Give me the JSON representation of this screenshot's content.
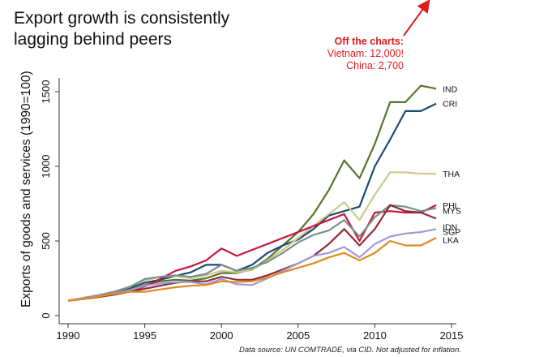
{
  "chart_data": {
    "type": "line",
    "title": "Export growth is consistently lagging behind peers",
    "title_lines": [
      "Export growth is consistently",
      "lagging behind peers"
    ],
    "xlabel": "",
    "ylabel": "Exports of goods and services (1990=100)",
    "xlim": [
      1989.5,
      2015.5
    ],
    "ylim": [
      0,
      1600
    ],
    "xticks": [
      1990,
      1995,
      2000,
      2005,
      2010,
      2015
    ],
    "yticks": [
      0,
      500,
      1000,
      1500
    ],
    "grid": false,
    "legend": "direct labels at line ends (right)",
    "x": [
      1990,
      1991,
      1992,
      1993,
      1994,
      1995,
      1996,
      1997,
      1998,
      1999,
      2000,
      2001,
      2002,
      2003,
      2004,
      2005,
      2006,
      2007,
      2008,
      2009,
      2010,
      2011,
      2012,
      2013,
      2014
    ],
    "series": [
      {
        "name": "IND",
        "color": "#56742c",
        "values": [
          100,
          118,
          130,
          150,
          175,
          205,
          230,
          240,
          235,
          250,
          285,
          285,
          310,
          380,
          470,
          560,
          680,
          840,
          1040,
          920,
          1150,
          1430,
          1430,
          1540,
          1520
        ]
      },
      {
        "name": "CRI",
        "color": "#1b4a73",
        "values": [
          100,
          118,
          135,
          155,
          185,
          220,
          240,
          265,
          290,
          340,
          340,
          300,
          340,
          420,
          470,
          510,
          580,
          670,
          700,
          730,
          1000,
          1180,
          1370,
          1370,
          1420
        ]
      },
      {
        "name": "THA",
        "color": "#cfc88c",
        "values": [
          100,
          120,
          140,
          160,
          195,
          235,
          260,
          265,
          250,
          270,
          300,
          290,
          305,
          370,
          440,
          520,
          600,
          680,
          760,
          640,
          810,
          960,
          960,
          950,
          950
        ]
      },
      {
        "name": "PHL",
        "color": "#c8173a",
        "values": [
          100,
          112,
          125,
          140,
          160,
          195,
          245,
          300,
          330,
          370,
          450,
          400,
          440,
          480,
          520,
          560,
          600,
          640,
          680,
          500,
          690,
          700,
          690,
          690,
          740
        ]
      },
      {
        "name": "MYS",
        "color": "#76928a",
        "values": [
          100,
          118,
          135,
          160,
          190,
          245,
          260,
          270,
          260,
          280,
          340,
          300,
          320,
          360,
          420,
          490,
          540,
          570,
          640,
          530,
          660,
          740,
          730,
          700,
          720
        ]
      },
      {
        "name": "IDN",
        "color": "#8c2c36",
        "values": [
          100,
          112,
          125,
          140,
          160,
          180,
          200,
          220,
          230,
          230,
          260,
          240,
          240,
          270,
          310,
          350,
          400,
          480,
          580,
          470,
          580,
          740,
          700,
          690,
          650
        ]
      },
      {
        "name": "SGP",
        "color": "#a09ad8",
        "values": [
          100,
          115,
          130,
          150,
          170,
          200,
          215,
          225,
          225,
          210,
          245,
          210,
          205,
          250,
          300,
          350,
          400,
          420,
          460,
          390,
          480,
          530,
          550,
          560,
          580
        ]
      },
      {
        "name": "LKA",
        "color": "#e08a1e",
        "values": [
          100,
          112,
          128,
          145,
          160,
          160,
          175,
          190,
          200,
          205,
          230,
          225,
          230,
          255,
          290,
          320,
          350,
          390,
          420,
          370,
          420,
          500,
          470,
          470,
          520
        ]
      }
    ],
    "annotation": {
      "heading": "Off the charts:",
      "lines": [
        "Vietnam: 12,000!",
        "China: 2,700"
      ],
      "color": "#e0191c",
      "arrow": "points up-right, off the top of the chart"
    },
    "source_note": "Data source: UN COMTRADE, via CID. Not adjusted for inflation."
  }
}
